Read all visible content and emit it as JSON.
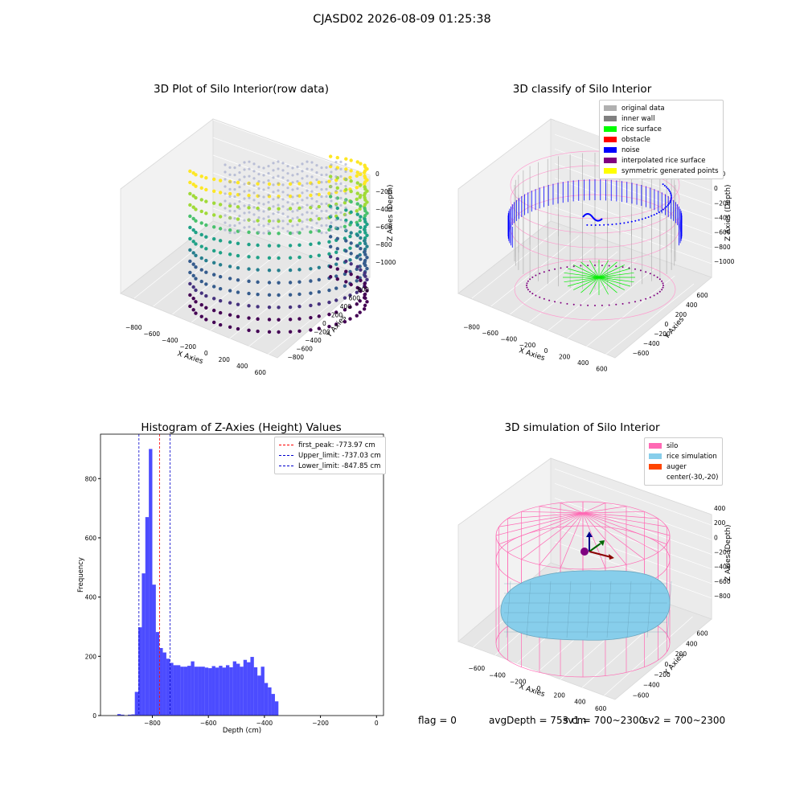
{
  "suptitle": "CJASD02 2026-08-09 01:25:38",
  "panel1": {
    "title": "3D Plot of Silo Interior(row data)",
    "xlabel": "X Axies",
    "ylabel": "Y Axies",
    "zlabel": "Z Axies (Depth)",
    "xticks": [
      "−800",
      "−600",
      "−400",
      "−200",
      "0",
      "200",
      "400",
      "600"
    ],
    "yticks": [
      "−800",
      "−600",
      "−400",
      "−200",
      "0",
      "200",
      "400",
      "600",
      "800"
    ],
    "zticks": [
      "0",
      "−200",
      "−400",
      "−600",
      "−800",
      "−1000"
    ]
  },
  "panel2": {
    "title": "3D classify of Silo Interior",
    "xlabel": "X Axies",
    "ylabel": "Y Axies",
    "zlabel": "Z Axies (Depth)",
    "xticks": [
      "−800",
      "−600",
      "−400",
      "−200",
      "0",
      "200",
      "400",
      "600"
    ],
    "yticks": [
      "−600",
      "−400",
      "−200",
      "0",
      "200",
      "400",
      "600"
    ],
    "zticks": [
      "200",
      "0",
      "−200",
      "−400",
      "−600",
      "−800",
      "−1000"
    ],
    "legend": [
      {
        "label": "original data",
        "color": "#b0b0b0"
      },
      {
        "label": "inner wall",
        "color": "#808080"
      },
      {
        "label": "rice surface",
        "color": "#00ff00"
      },
      {
        "label": "obstacle",
        "color": "#ff0000"
      },
      {
        "label": "noise",
        "color": "#0000ff"
      },
      {
        "label": "interpolated rice surface",
        "color": "#800080"
      },
      {
        "label": "symmetric generated points",
        "color": "#ffff00"
      }
    ]
  },
  "panel4": {
    "title": "3D simulation of Silo Interior",
    "xlabel": "X Axies",
    "ylabel": "Y Axies",
    "zlabel": "Z Axies (Depth)",
    "xticks": [
      "−600",
      "−400",
      "−200",
      "0",
      "200",
      "400",
      "600"
    ],
    "yticks": [
      "−600",
      "−400",
      "−200",
      "0",
      "200",
      "400",
      "600"
    ],
    "zticks": [
      "400",
      "200",
      "0",
      "−200",
      "−400",
      "−600",
      "−800"
    ],
    "legend": [
      {
        "label": "silo",
        "color": "#ff69b4"
      },
      {
        "label": "rice simulation",
        "color": "#87ceeb"
      },
      {
        "label": "auger",
        "color": "#ff4500"
      },
      {
        "label": "center(-30,-20)",
        "color": ""
      }
    ]
  },
  "footer": {
    "flag": "flag = 0",
    "avg": "avgDepth = 753 cm",
    "sv1": "sv1 = 700~2300",
    "sv2": "sv2 = 700~2300"
  },
  "chart_data": [
    {
      "type": "bar",
      "title": "Histogram of Z-Axies (Height) Values",
      "xlabel": "Depth (cm)",
      "ylabel": "Frequency",
      "xlim": [
        -985,
        25
      ],
      "ylim": [
        0,
        950
      ],
      "bin_width": 12.5,
      "bin_start": -925,
      "xticks": [
        -800,
        -600,
        -400,
        -200,
        0
      ],
      "yticks": [
        0,
        200,
        400,
        600,
        800
      ],
      "values": [
        5,
        3,
        0,
        3,
        4,
        80,
        298,
        480,
        670,
        900,
        442,
        282,
        228,
        213,
        192,
        178,
        170,
        170,
        165,
        165,
        168,
        183,
        165,
        165,
        165,
        162,
        160,
        167,
        162,
        168,
        162,
        170,
        163,
        183,
        175,
        165,
        188,
        180,
        198,
        163,
        135,
        165,
        110,
        95,
        73,
        48
      ],
      "color": "#0000ff",
      "vlines": [
        {
          "label": "first_peak: -773.97 cm",
          "x": -773.97,
          "color": "#ff0000"
        },
        {
          "label": "Upper_limit: -737.03 cm",
          "x": -737.03,
          "color": "#0000cd"
        },
        {
          "label": "Lower_limit: -847.85 cm",
          "x": -847.85,
          "color": "#0000cd"
        }
      ],
      "legend_position": "upper right"
    }
  ]
}
